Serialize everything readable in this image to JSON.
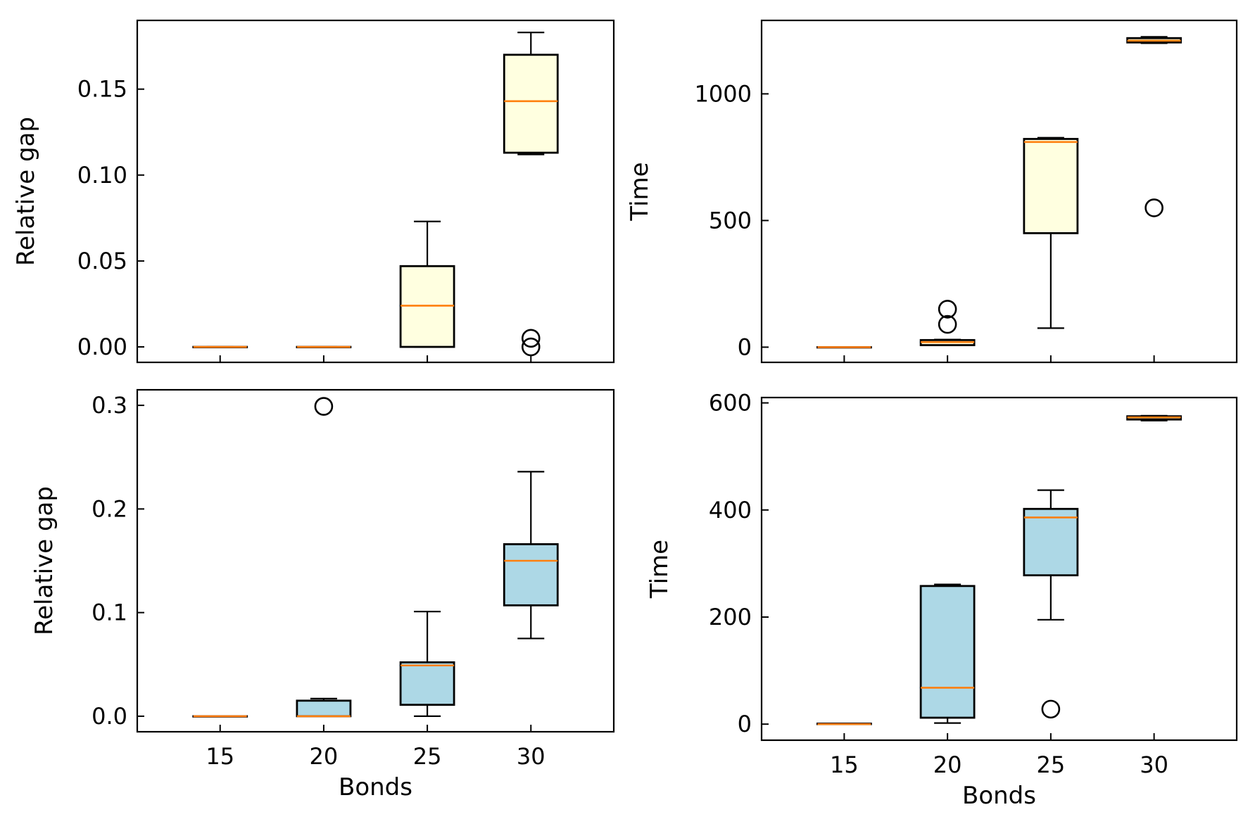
{
  "colors": {
    "box_fill_top": "#ffffe0",
    "box_fill_bottom": "#add8e6",
    "median_line": "#ff7f0e",
    "axis": "#000000"
  },
  "chart_data": [
    {
      "id": "top-left",
      "type": "boxplot",
      "xlabel": "",
      "ylabel": "Relative gap",
      "categories": [
        "15",
        "20",
        "25",
        "30"
      ],
      "ylim": [
        -0.009,
        0.19
      ],
      "yticks": [
        0.0,
        0.05,
        0.1,
        0.15
      ],
      "ytick_labels": [
        "0.00",
        "0.05",
        "0.10",
        "0.15"
      ],
      "show_xtick_labels": false,
      "fill": "box_fill_top",
      "boxes": [
        {
          "whislo": 0.0,
          "q1": 0.0,
          "med": 0.0,
          "q3": 0.0,
          "whishi": 0.0,
          "fliers": []
        },
        {
          "whislo": 0.0,
          "q1": 0.0,
          "med": 0.0,
          "q3": 0.0,
          "whishi": 0.0,
          "fliers": []
        },
        {
          "whislo": 0.0,
          "q1": 0.0,
          "med": 0.024,
          "q3": 0.047,
          "whishi": 0.073,
          "fliers": []
        },
        {
          "whislo": 0.112,
          "q1": 0.113,
          "med": 0.143,
          "q3": 0.17,
          "whishi": 0.183,
          "fliers": [
            0.0,
            0.005
          ]
        }
      ]
    },
    {
      "id": "top-right",
      "type": "boxplot",
      "xlabel": "",
      "ylabel": "Time",
      "categories": [
        "15",
        "20",
        "25",
        "30"
      ],
      "ylim": [
        -60,
        1290
      ],
      "yticks": [
        0,
        500,
        1000
      ],
      "ytick_labels": [
        "0",
        "500",
        "1000"
      ],
      "show_xtick_labels": false,
      "fill": "box_fill_top",
      "boxes": [
        {
          "whislo": 0,
          "q1": 0,
          "med": 0,
          "q3": 0,
          "whishi": 0,
          "fliers": []
        },
        {
          "whislo": 8,
          "q1": 8,
          "med": 20,
          "q3": 28,
          "whishi": 30,
          "fliers": [
            90,
            150
          ]
        },
        {
          "whislo": 75,
          "q1": 450,
          "med": 810,
          "q3": 822,
          "whishi": 827,
          "fliers": []
        },
        {
          "whislo": 1200,
          "q1": 1203,
          "med": 1210,
          "q3": 1220,
          "whishi": 1225,
          "fliers": [
            550
          ]
        }
      ]
    },
    {
      "id": "bottom-left",
      "type": "boxplot",
      "xlabel": "Bonds",
      "ylabel": "Relative gap",
      "categories": [
        "15",
        "20",
        "25",
        "30"
      ],
      "ylim": [
        -0.015,
        0.315
      ],
      "yticks": [
        0.0,
        0.1,
        0.2,
        0.3
      ],
      "ytick_labels": [
        "0.0",
        "0.1",
        "0.2",
        "0.3"
      ],
      "show_xtick_labels": true,
      "fill": "box_fill_bottom",
      "boxes": [
        {
          "whislo": 0.0,
          "q1": 0.0,
          "med": 0.0,
          "q3": 0.0,
          "whishi": 0.0,
          "fliers": []
        },
        {
          "whislo": 0.0,
          "q1": 0.0,
          "med": 0.0,
          "q3": 0.015,
          "whishi": 0.017,
          "fliers": [
            0.299
          ]
        },
        {
          "whislo": 0.0,
          "q1": 0.011,
          "med": 0.049,
          "q3": 0.052,
          "whishi": 0.101,
          "fliers": []
        },
        {
          "whislo": 0.075,
          "q1": 0.107,
          "med": 0.15,
          "q3": 0.166,
          "whishi": 0.236,
          "fliers": []
        }
      ]
    },
    {
      "id": "bottom-right",
      "type": "boxplot",
      "xlabel": "Bonds",
      "ylabel": "Time",
      "categories": [
        "15",
        "20",
        "25",
        "30"
      ],
      "ylim": [
        -30,
        610
      ],
      "yticks": [
        0,
        200,
        400,
        600
      ],
      "ytick_labels": [
        "0",
        "200",
        "400",
        "600"
      ],
      "show_xtick_labels": true,
      "fill": "box_fill_bottom",
      "boxes": [
        {
          "whislo": 0,
          "q1": 0,
          "med": 0,
          "q3": 1,
          "whishi": 1,
          "fliers": []
        },
        {
          "whislo": 2,
          "q1": 12,
          "med": 68,
          "q3": 258,
          "whishi": 261,
          "fliers": []
        },
        {
          "whislo": 195,
          "q1": 278,
          "med": 386,
          "q3": 402,
          "whishi": 437,
          "fliers": [
            28
          ]
        },
        {
          "whislo": 567,
          "q1": 569,
          "med": 573,
          "q3": 575,
          "whishi": 576,
          "fliers": []
        }
      ]
    }
  ]
}
